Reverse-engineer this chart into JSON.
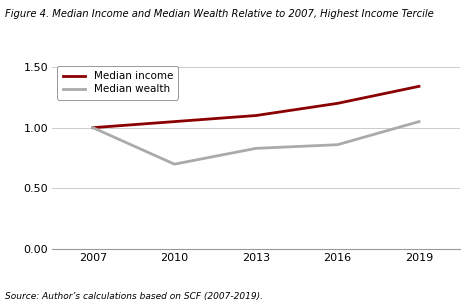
{
  "title": "Figure 4. Median Income and Median Wealth Relative to 2007, Highest Income Tercile",
  "x_values": [
    2007,
    2010,
    2013,
    2016,
    2019
  ],
  "median_income": [
    1.0,
    1.05,
    1.1,
    1.2,
    1.34
  ],
  "median_wealth": [
    1.0,
    0.7,
    0.83,
    0.86,
    1.05
  ],
  "income_color": "#8B0000",
  "wealth_color": "#AAAAAA",
  "income_label": "Median income",
  "wealth_label": "Median wealth",
  "ylim": [
    0.0,
    1.55
  ],
  "yticks": [
    0.0,
    0.5,
    1.0,
    1.5
  ],
  "xticks": [
    2007,
    2010,
    2013,
    2016,
    2019
  ],
  "source_text": "Source: Author’s calculations based on SCF (2007-2019).",
  "background_color": "#ffffff",
  "line_width": 2.0
}
